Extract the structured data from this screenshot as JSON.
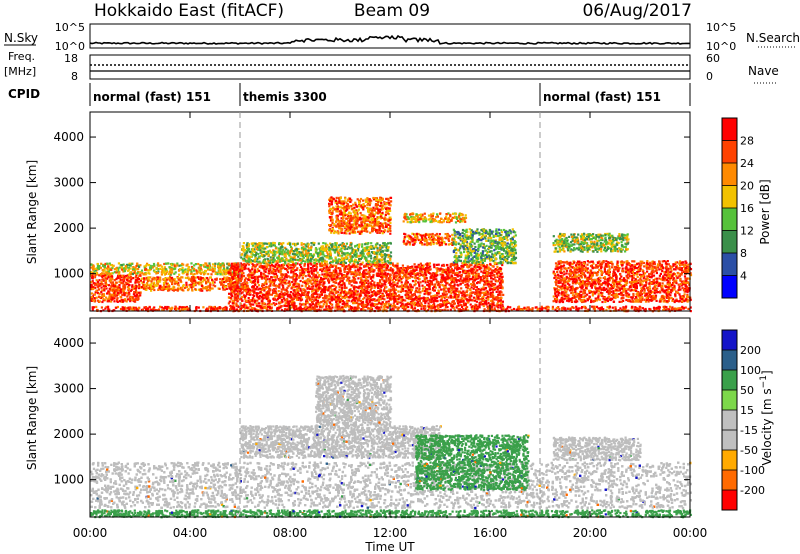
{
  "header": {
    "station": "Hokkaido East (fitACF)",
    "beam": "Beam 09",
    "date": "06/Aug/2017"
  },
  "status_panels": {
    "nsky_label": "N.Sky",
    "nsky_ticks": [
      "10^5",
      "10^0"
    ],
    "nsearch_label": "N.Search",
    "nsearch_ticks": [
      "10^5",
      "10^0"
    ],
    "freq_label_1": "Freq.",
    "freq_label_2": "[MHz]",
    "freq_ticks": [
      "18",
      "8"
    ],
    "nave_label": "Nave",
    "nave_ticks": [
      "60",
      "0"
    ],
    "cpid_label": "CPID",
    "cpid_segments": [
      {
        "label": "normal (fast) 151",
        "start_h": 0,
        "end_h": 6
      },
      {
        "label": "themis 3300",
        "start_h": 6,
        "end_h": 18
      },
      {
        "label": "normal (fast) 151",
        "start_h": 18,
        "end_h": 24
      }
    ]
  },
  "colors": {
    "power_scale": [
      "#0000ff",
      "#2b4fa6",
      "#3a8f4a",
      "#56c23a",
      "#f2c200",
      "#ff8a00",
      "#ff4200",
      "#ff0000"
    ],
    "velocity_scale": [
      "#ff0000",
      "#ff6a00",
      "#ffaa00",
      "#c0c0c0",
      "#c0c0c0",
      "#7dd84a",
      "#3aa04a",
      "#2b5f8a",
      "#1414c8"
    ],
    "ground_scatter": "#bdbdbd"
  },
  "chart_data": [
    {
      "type": "heatmap",
      "title": "",
      "xlabel": "",
      "ylabel": "Slant Range [km]",
      "x_range_hours": [
        0,
        24
      ],
      "y_range_km": [
        180,
        4550
      ],
      "x_ticks": [
        "00:00",
        "04:00",
        "08:00",
        "12:00",
        "16:00",
        "20:00",
        "00:00"
      ],
      "y_ticks": [
        1000,
        2000,
        3000,
        4000
      ],
      "colorbar": {
        "label": "Power [dB]",
        "range": [
          0,
          32
        ],
        "ticks": [
          4,
          8,
          12,
          16,
          20,
          24,
          28
        ]
      },
      "regions": [
        {
          "t0": 0.0,
          "t1": 2.0,
          "r0": 400,
          "r1": 1000,
          "value": 27
        },
        {
          "t0": 0.0,
          "t1": 6.0,
          "r0": 1000,
          "r1": 1250,
          "value": 18
        },
        {
          "t0": 2.0,
          "t1": 6.0,
          "r0": 650,
          "r1": 950,
          "value": 24
        },
        {
          "t0": 5.5,
          "t1": 16.5,
          "r0": 300,
          "r1": 1250,
          "value": 28
        },
        {
          "t0": 6.0,
          "t1": 12.0,
          "r0": 1250,
          "r1": 1700,
          "value": 15
        },
        {
          "t0": 9.5,
          "t1": 12.0,
          "r0": 1900,
          "r1": 2700,
          "value": 24
        },
        {
          "t0": 12.5,
          "t1": 14.5,
          "r0": 1650,
          "r1": 1900,
          "value": 25
        },
        {
          "t0": 12.5,
          "t1": 15.0,
          "r0": 2150,
          "r1": 2350,
          "value": 20
        },
        {
          "t0": 14.5,
          "t1": 17.0,
          "r0": 1250,
          "r1": 2000,
          "value": 13
        },
        {
          "t0": 18.5,
          "t1": 24.0,
          "r0": 400,
          "r1": 1300,
          "value": 27
        },
        {
          "t0": 18.5,
          "t1": 21.5,
          "r0": 1500,
          "r1": 1900,
          "value": 15
        },
        {
          "t0": 0.0,
          "t1": 24.0,
          "r0": 200,
          "r1": 300,
          "value": 28
        }
      ]
    },
    {
      "type": "heatmap",
      "title": "",
      "xlabel": "Time UT",
      "ylabel": "Slant Range [km]",
      "x_range_hours": [
        0,
        24
      ],
      "y_range_km": [
        180,
        4550
      ],
      "x_ticks": [
        "00:00",
        "04:00",
        "08:00",
        "12:00",
        "16:00",
        "20:00",
        "00:00"
      ],
      "y_ticks": [
        1000,
        2000,
        3000,
        4000
      ],
      "colorbar": {
        "label": "Velocity [m s^-1]",
        "tick_labels": [
          "-200",
          "-100",
          "-50",
          "-15",
          "15",
          "50",
          "100",
          "200"
        ]
      },
      "regions": [
        {
          "t0": 0.0,
          "t1": 24.0,
          "r0": 400,
          "r1": 1400,
          "value": 0
        },
        {
          "t0": 6.0,
          "t1": 14.0,
          "r0": 1500,
          "r1": 2200,
          "value": 0
        },
        {
          "t0": 9.0,
          "t1": 12.0,
          "r0": 2200,
          "r1": 3300,
          "value": 0
        },
        {
          "t0": 13.0,
          "t1": 17.5,
          "r0": 800,
          "r1": 2000,
          "value": 30
        },
        {
          "t0": 0.0,
          "t1": 24.0,
          "r0": 200,
          "r1": 350,
          "value": 30
        },
        {
          "t0": 18.5,
          "t1": 22.0,
          "r0": 1450,
          "r1": 1950,
          "value": 0
        }
      ]
    }
  ]
}
